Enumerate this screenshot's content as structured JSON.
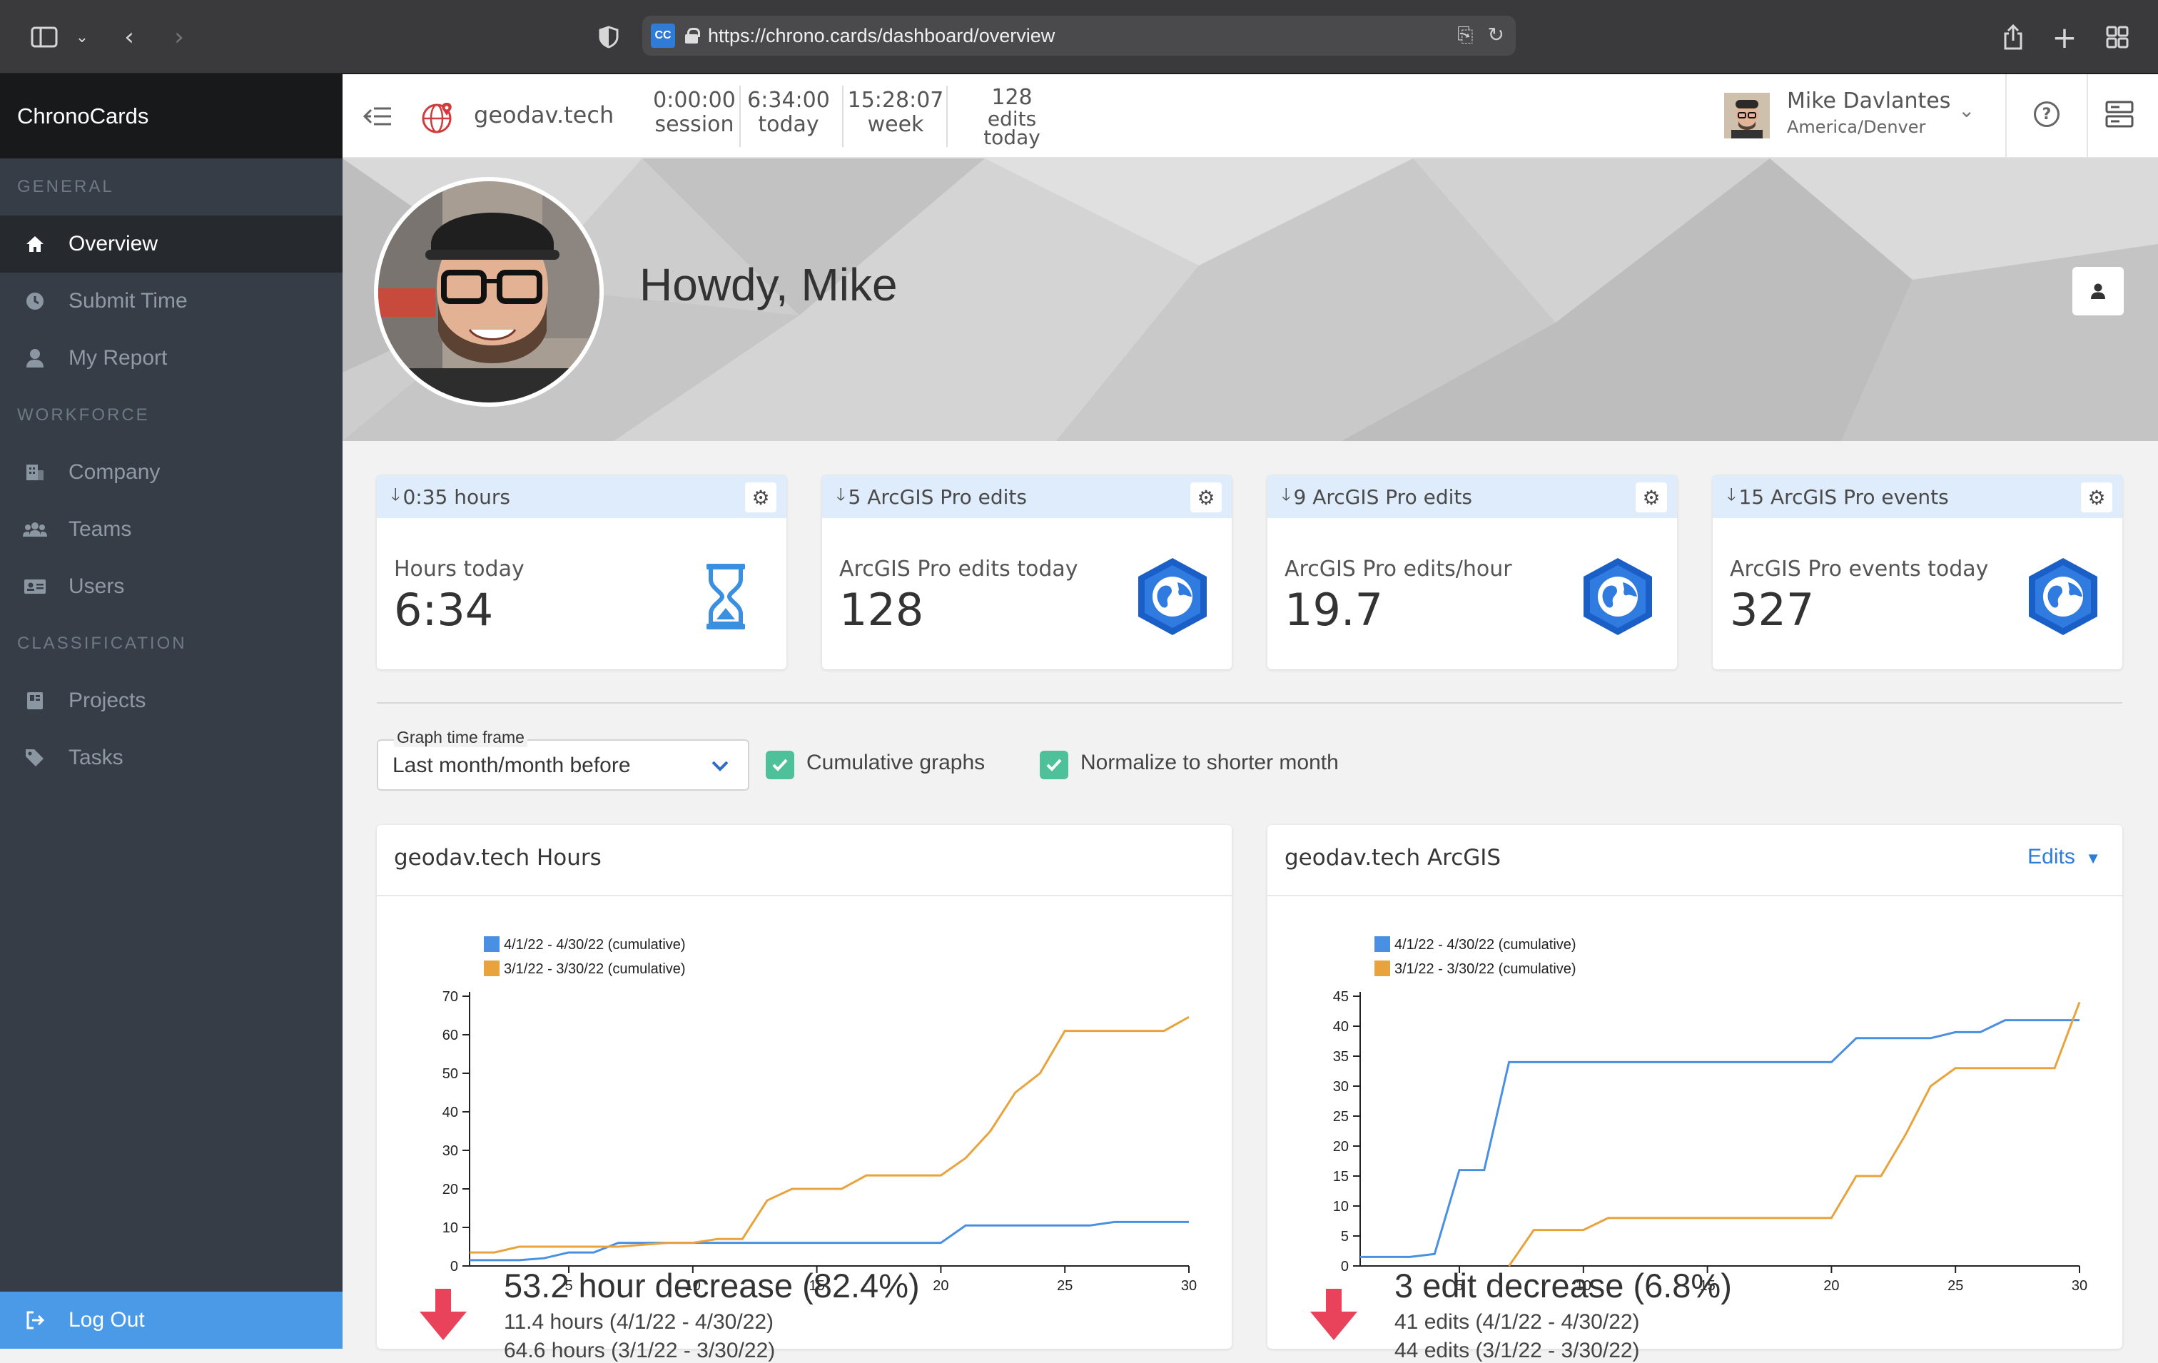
{
  "browser": {
    "url": "https://chrono.cards/dashboard/overview",
    "favicon_text": "CC"
  },
  "sidebar": {
    "brand": "ChronoCards",
    "sections": [
      {
        "label": "GENERAL",
        "items": [
          {
            "label": "Overview",
            "icon": "home-icon",
            "active": true
          },
          {
            "label": "Submit Time",
            "icon": "clock-icon"
          },
          {
            "label": "My Report",
            "icon": "user-icon"
          }
        ]
      },
      {
        "label": "WORKFORCE",
        "items": [
          {
            "label": "Company",
            "icon": "building-icon"
          },
          {
            "label": "Teams",
            "icon": "users-icon"
          },
          {
            "label": "Users",
            "icon": "id-card-icon"
          }
        ]
      },
      {
        "label": "CLASSIFICATION",
        "items": [
          {
            "label": "Projects",
            "icon": "project-icon"
          },
          {
            "label": "Tasks",
            "icon": "tags-icon"
          }
        ]
      }
    ],
    "logout": "Log Out"
  },
  "topbar": {
    "company": "geodav.tech",
    "session_value": "0:00:00",
    "session_label": "session",
    "today_value": "6:34:00",
    "today_label": "today",
    "week_value": "15:28:07",
    "week_label": "week",
    "edits_value": "128",
    "edits_label1": "edits",
    "edits_label2": "today",
    "user_name": "Mike Davlantes",
    "user_tz": "America/Denver"
  },
  "hero": {
    "greeting": "Howdy, Mike"
  },
  "cards": [
    {
      "header": "0:35 hours",
      "label": "Hours today",
      "value": "6:34",
      "icon": "hourglass-icon"
    },
    {
      "header": "5 ArcGIS Pro edits",
      "label": "ArcGIS Pro edits today",
      "value": "128",
      "icon": "arcgis-pro-icon"
    },
    {
      "header": "9 ArcGIS Pro edits",
      "label": "ArcGIS Pro edits/hour",
      "value": "19.7",
      "icon": "arcgis-pro-icon"
    },
    {
      "header": "15 ArcGIS Pro events",
      "label": "ArcGIS Pro events today",
      "value": "327",
      "icon": "arcgis-pro-icon"
    }
  ],
  "controls": {
    "timeframe_legend": "Graph time frame",
    "timeframe_value": "Last month/month before",
    "cumulative_label": "Cumulative graphs",
    "cumulative_checked": true,
    "normalize_label": "Normalize to shorter month",
    "normalize_checked": true
  },
  "panels": {
    "hours": {
      "title": "geodav.tech Hours",
      "summary": "53.2 hour decrease (82.4%)",
      "line1": "11.4 hours (4/1/22 - 4/30/22)",
      "line2": "64.6 hours (3/1/22 - 3/30/22)"
    },
    "arcgis": {
      "title": "geodav.tech ArcGIS",
      "dropdown": "Edits",
      "summary": "3 edit decrease (6.8%)",
      "line1": "41 edits (4/1/22 - 4/30/22)",
      "line2": "44 edits (3/1/22 - 3/30/22)"
    }
  },
  "colors": {
    "series_current": "#4a90e2",
    "series_previous": "#e8a33d",
    "accent": "#4a9ae8",
    "decrease": "#e8435a"
  },
  "chart_data": [
    {
      "type": "line",
      "title": "",
      "xlabel": "",
      "ylabel": "",
      "x": [
        1,
        2,
        3,
        4,
        5,
        6,
        7,
        8,
        9,
        10,
        11,
        12,
        13,
        14,
        15,
        16,
        17,
        18,
        19,
        20,
        21,
        22,
        23,
        24,
        25,
        26,
        27,
        28,
        29,
        30
      ],
      "xticks": [
        5,
        10,
        15,
        20,
        25,
        30
      ],
      "yticks": [
        0,
        10,
        20,
        30,
        40,
        50,
        60,
        70
      ],
      "xlim": [
        1,
        30
      ],
      "ylim": [
        0,
        70
      ],
      "legend": "top-left",
      "series": [
        {
          "name": "4/1/22 - 4/30/22 (cumulative)",
          "values": [
            1.5,
            1.5,
            1.5,
            2,
            3.5,
            3.5,
            6,
            6,
            6,
            6,
            6,
            6,
            6,
            6,
            6,
            6,
            6,
            6,
            6,
            6,
            10.5,
            10.5,
            10.5,
            10.5,
            10.5,
            10.5,
            11.4,
            11.4,
            11.4,
            11.4
          ]
        },
        {
          "name": "3/1/22 - 3/30/22 (cumulative)",
          "values": [
            3.5,
            3.5,
            5,
            5,
            5,
            5,
            5,
            5.5,
            6,
            6,
            7,
            7,
            17,
            20,
            20,
            20,
            23.5,
            23.5,
            23.5,
            23.5,
            28,
            35,
            45,
            50,
            61,
            61,
            61,
            61,
            61,
            64.6
          ]
        }
      ]
    },
    {
      "type": "line",
      "title": "",
      "xlabel": "",
      "ylabel": "",
      "x": [
        1,
        2,
        3,
        4,
        5,
        6,
        7,
        8,
        9,
        10,
        11,
        12,
        13,
        14,
        15,
        16,
        17,
        18,
        19,
        20,
        21,
        22,
        23,
        24,
        25,
        26,
        27,
        28,
        29,
        30
      ],
      "xticks": [
        5,
        10,
        15,
        20,
        25,
        30
      ],
      "yticks": [
        0,
        5,
        10,
        15,
        20,
        25,
        30,
        35,
        40,
        45
      ],
      "xlim": [
        1,
        30
      ],
      "ylim": [
        0,
        45
      ],
      "legend": "top-left",
      "series": [
        {
          "name": "4/1/22 - 4/30/22 (cumulative)",
          "values": [
            1.5,
            1.5,
            1.5,
            2,
            16,
            16,
            34,
            34,
            34,
            34,
            34,
            34,
            34,
            34,
            34,
            34,
            34,
            34,
            34,
            34,
            38,
            38,
            38,
            38,
            39,
            39,
            41,
            41,
            41,
            41
          ]
        },
        {
          "name": "3/1/22 - 3/30/22 (cumulative)",
          "values": [
            null,
            null,
            null,
            null,
            null,
            null,
            0,
            6,
            6,
            6,
            8,
            8,
            8,
            8,
            8,
            8,
            8,
            8,
            8,
            8,
            15,
            15,
            22,
            30,
            33,
            33,
            33,
            33,
            33,
            44
          ]
        }
      ]
    }
  ]
}
